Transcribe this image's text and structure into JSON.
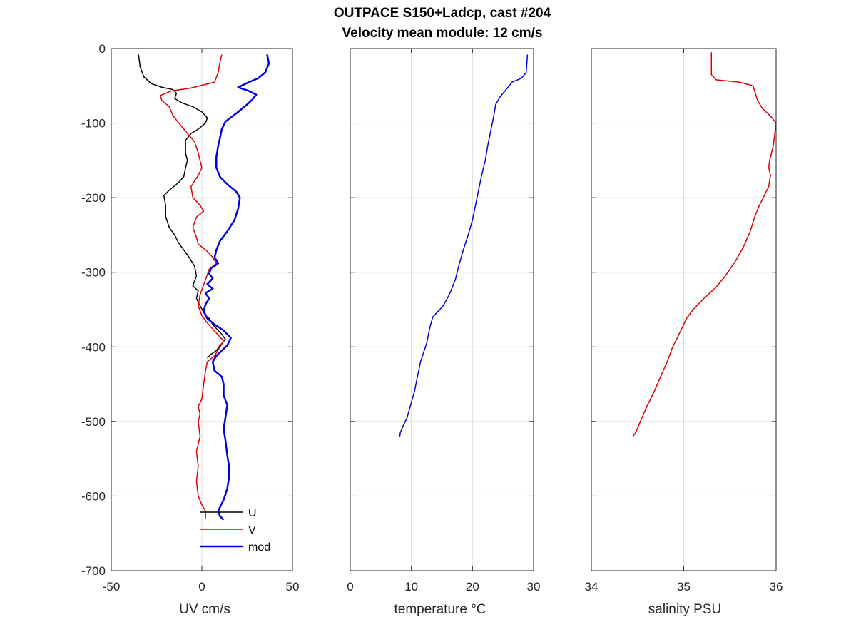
{
  "title": [
    "OUTPACE S150+Ladcp, cast #204",
    "Velocity mean module:  12 cm/s"
  ],
  "chart_data": [
    {
      "id": "uv",
      "type": "line",
      "xlabel": "UV cm/s",
      "ylabel": "",
      "xlim": [
        -50,
        50
      ],
      "ylim": [
        -700,
        0
      ],
      "xticks": [
        -50,
        0,
        50
      ],
      "yticks": [
        0,
        -100,
        -200,
        -300,
        -400,
        -500,
        -600,
        -700
      ],
      "grid": true,
      "legend_position": "bottom-right",
      "series": [
        {
          "name": "U",
          "color": "#000000",
          "points": [
            [
              -35,
              -8
            ],
            [
              -34,
              -25
            ],
            [
              -32,
              -38
            ],
            [
              -28,
              -47
            ],
            [
              -22,
              -52
            ],
            [
              -16,
              -55
            ],
            [
              -14,
              -60
            ],
            [
              -15,
              -67
            ],
            [
              -11,
              -73
            ],
            [
              -5,
              -78
            ],
            [
              0,
              -85
            ],
            [
              3,
              -93
            ],
            [
              2,
              -100
            ],
            [
              -2,
              -108
            ],
            [
              -6,
              -114
            ],
            [
              -9,
              -123
            ],
            [
              -9,
              -140
            ],
            [
              -8,
              -150
            ],
            [
              -9,
              -160
            ],
            [
              -10,
              -172
            ],
            [
              -13,
              -180
            ],
            [
              -18,
              -190
            ],
            [
              -21,
              -197
            ],
            [
              -20,
              -210
            ],
            [
              -20,
              -225
            ],
            [
              -18,
              -240
            ],
            [
              -15,
              -250
            ],
            [
              -13,
              -260
            ],
            [
              -10,
              -270
            ],
            [
              -7,
              -280
            ],
            [
              -4,
              -292
            ],
            [
              -3,
              -305
            ],
            [
              -5,
              -318
            ],
            [
              -2,
              -325
            ],
            [
              -3,
              -335
            ],
            [
              -1,
              -345
            ],
            [
              2,
              -358
            ],
            [
              4,
              -362
            ],
            [
              6,
              -370
            ],
            [
              9,
              -378
            ],
            [
              11,
              -383
            ],
            [
              13,
              -390
            ],
            [
              10,
              -398
            ],
            [
              8,
              -405
            ],
            [
              5,
              -410
            ],
            [
              3,
              -415
            ]
          ]
        },
        {
          "name": "V",
          "color": "#e00000",
          "points": [
            [
              11,
              -8
            ],
            [
              10,
              -18
            ],
            [
              9,
              -32
            ],
            [
              7,
              -45
            ],
            [
              -6,
              -53
            ],
            [
              -17,
              -57
            ],
            [
              -23,
              -63
            ],
            [
              -22,
              -70
            ],
            [
              -18,
              -78
            ],
            [
              -16,
              -90
            ],
            [
              -10,
              -108
            ],
            [
              -4,
              -125
            ],
            [
              -2,
              -140
            ],
            [
              -1,
              -150
            ],
            [
              0,
              -160
            ],
            [
              -2,
              -170
            ],
            [
              -6,
              -185
            ],
            [
              -5,
              -200
            ],
            [
              -1,
              -210
            ],
            [
              1,
              -218
            ],
            [
              -3,
              -226
            ],
            [
              -5,
              -240
            ],
            [
              -3,
              -253
            ],
            [
              -2,
              -262
            ],
            [
              3,
              -272
            ],
            [
              6,
              -280
            ],
            [
              8,
              -288
            ],
            [
              4,
              -296
            ],
            [
              2,
              -310
            ],
            [
              -1,
              -330
            ],
            [
              -2,
              -345
            ],
            [
              0,
              -358
            ],
            [
              3,
              -368
            ],
            [
              6,
              -376
            ],
            [
              9,
              -384
            ],
            [
              12,
              -392
            ],
            [
              10,
              -400
            ],
            [
              7,
              -412
            ],
            [
              3,
              -420
            ],
            [
              2,
              -432
            ],
            [
              1,
              -450
            ],
            [
              0,
              -470
            ],
            [
              -2,
              -480
            ],
            [
              -1,
              -490
            ],
            [
              -2,
              -500
            ],
            [
              -1,
              -520
            ],
            [
              -3,
              -540
            ],
            [
              -2,
              -560
            ],
            [
              -3,
              -580
            ],
            [
              -2,
              -600
            ],
            [
              0,
              -612
            ],
            [
              2,
              -620
            ],
            [
              2,
              -630
            ]
          ]
        },
        {
          "name": "mod",
          "color": "#0000e0",
          "points": [
            [
              36,
              -8
            ],
            [
              37,
              -20
            ],
            [
              35,
              -32
            ],
            [
              31,
              -40
            ],
            [
              26,
              -45
            ],
            [
              20,
              -52
            ],
            [
              26,
              -57
            ],
            [
              30,
              -62
            ],
            [
              28,
              -68
            ],
            [
              25,
              -75
            ],
            [
              20,
              -85
            ],
            [
              13,
              -98
            ],
            [
              11,
              -108
            ],
            [
              10,
              -120
            ],
            [
              9,
              -130
            ],
            [
              8,
              -145
            ],
            [
              8,
              -160
            ],
            [
              10,
              -172
            ],
            [
              14,
              -182
            ],
            [
              19,
              -192
            ],
            [
              21,
              -200
            ],
            [
              20,
              -215
            ],
            [
              18,
              -230
            ],
            [
              14,
              -245
            ],
            [
              10,
              -258
            ],
            [
              8,
              -270
            ],
            [
              7,
              -280
            ],
            [
              9,
              -288
            ],
            [
              5,
              -295
            ],
            [
              4,
              -302
            ],
            [
              6,
              -308
            ],
            [
              3,
              -316
            ],
            [
              6,
              -322
            ],
            [
              2,
              -328
            ],
            [
              4,
              -335
            ],
            [
              2,
              -343
            ],
            [
              1,
              -352
            ],
            [
              3,
              -362
            ],
            [
              7,
              -370
            ],
            [
              12,
              -378
            ],
            [
              16,
              -388
            ],
            [
              14,
              -398
            ],
            [
              11,
              -405
            ],
            [
              8,
              -412
            ],
            [
              6,
              -420
            ],
            [
              7,
              -432
            ],
            [
              11,
              -440
            ],
            [
              12,
              -450
            ],
            [
              12,
              -465
            ],
            [
              14,
              -478
            ],
            [
              13,
              -495
            ],
            [
              12,
              -510
            ],
            [
              13,
              -525
            ],
            [
              14,
              -545
            ],
            [
              15,
              -560
            ],
            [
              15,
              -575
            ],
            [
              14,
              -590
            ],
            [
              12,
              -605
            ],
            [
              10,
              -615
            ],
            [
              9,
              -620
            ],
            [
              10,
              -627
            ],
            [
              12,
              -632
            ]
          ]
        }
      ]
    },
    {
      "id": "temperature",
      "type": "line",
      "xlabel": "temperature °C",
      "ylabel": "",
      "xlim": [
        0,
        30
      ],
      "ylim": [
        -700,
        0
      ],
      "xticks": [
        0,
        10,
        20,
        30
      ],
      "grid": true,
      "series": [
        {
          "color": "#0000e0",
          "points": [
            [
              29,
              -8
            ],
            [
              28.9,
              -20
            ],
            [
              28.8,
              -32
            ],
            [
              28,
              -40
            ],
            [
              26.5,
              -45
            ],
            [
              25.5,
              -55
            ],
            [
              24.5,
              -65
            ],
            [
              23.8,
              -75
            ],
            [
              23.5,
              -90
            ],
            [
              23,
              -110
            ],
            [
              22.5,
              -130
            ],
            [
              22.1,
              -150
            ],
            [
              21.5,
              -170
            ],
            [
              21,
              -190
            ],
            [
              20.5,
              -210
            ],
            [
              20,
              -230
            ],
            [
              19.3,
              -250
            ],
            [
              18.5,
              -270
            ],
            [
              17.8,
              -290
            ],
            [
              17.2,
              -310
            ],
            [
              16.2,
              -330
            ],
            [
              15.2,
              -345
            ],
            [
              13.5,
              -360
            ],
            [
              13,
              -375
            ],
            [
              12.5,
              -395
            ],
            [
              11.5,
              -420
            ],
            [
              11,
              -440
            ],
            [
              10.5,
              -460
            ],
            [
              9.8,
              -480
            ],
            [
              9.3,
              -495
            ],
            [
              8.7,
              -505
            ],
            [
              8.2,
              -515
            ],
            [
              8.1,
              -520
            ]
          ]
        }
      ]
    },
    {
      "id": "salinity",
      "type": "line",
      "xlabel": "salinity PSU",
      "ylabel": "",
      "xlim": [
        34,
        36
      ],
      "ylim": [
        -700,
        0
      ],
      "xticks": [
        34,
        35,
        36
      ],
      "grid": true,
      "series": [
        {
          "color": "#e00000",
          "points": [
            [
              35.3,
              -5
            ],
            [
              35.3,
              -20
            ],
            [
              35.3,
              -35
            ],
            [
              35.35,
              -42
            ],
            [
              35.6,
              -45
            ],
            [
              35.75,
              -50
            ],
            [
              35.8,
              -70
            ],
            [
              35.85,
              -80
            ],
            [
              35.95,
              -92
            ],
            [
              36,
              -100
            ],
            [
              35.99,
              -110
            ],
            [
              35.97,
              -130
            ],
            [
              35.93,
              -150
            ],
            [
              35.92,
              -160
            ],
            [
              35.94,
              -170
            ],
            [
              35.92,
              -185
            ],
            [
              35.88,
              -195
            ],
            [
              35.82,
              -210
            ],
            [
              35.77,
              -225
            ],
            [
              35.72,
              -245
            ],
            [
              35.65,
              -265
            ],
            [
              35.56,
              -285
            ],
            [
              35.45,
              -305
            ],
            [
              35.35,
              -320
            ],
            [
              35.22,
              -335
            ],
            [
              35.1,
              -350
            ],
            [
              35.03,
              -362
            ],
            [
              34.98,
              -375
            ],
            [
              34.93,
              -388
            ],
            [
              34.88,
              -400
            ],
            [
              34.82,
              -420
            ],
            [
              34.75,
              -440
            ],
            [
              34.68,
              -460
            ],
            [
              34.6,
              -480
            ],
            [
              34.53,
              -500
            ],
            [
              34.48,
              -515
            ],
            [
              34.45,
              -520
            ]
          ]
        }
      ]
    }
  ]
}
